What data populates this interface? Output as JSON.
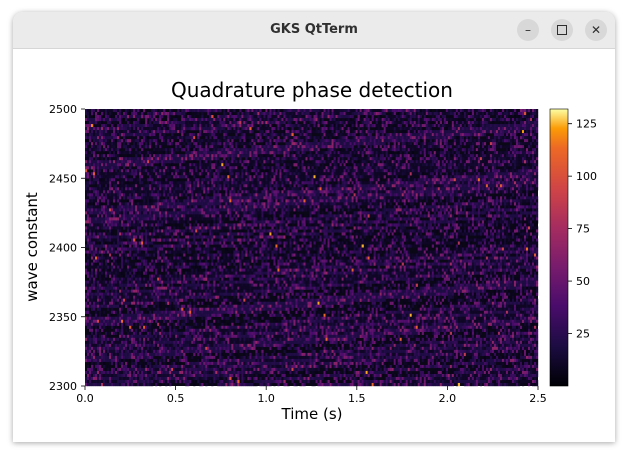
{
  "window": {
    "title": "GKS QtTerm",
    "buttons": {
      "minimize_icon": "minimize-icon",
      "maximize_icon": "maximize-icon",
      "close_icon": "close-icon"
    }
  },
  "chart_data": {
    "type": "heatmap",
    "title": "Quadrature phase detection",
    "xlabel": "Time (s)",
    "ylabel": "wave constant",
    "xlim": [
      0.0,
      2.5
    ],
    "ylim": [
      2300,
      2500
    ],
    "x_ticks": [
      "0.0",
      "0.5",
      "1.0",
      "1.5",
      "2.0",
      "2.5"
    ],
    "y_ticks": [
      "2300",
      "2350",
      "2400",
      "2450",
      "2500"
    ],
    "colorbar": {
      "colormap": "inferno",
      "range": [
        0,
        132
      ],
      "ticks": [
        "25",
        "50",
        "75",
        "100",
        "125"
      ]
    },
    "grid": false
  }
}
